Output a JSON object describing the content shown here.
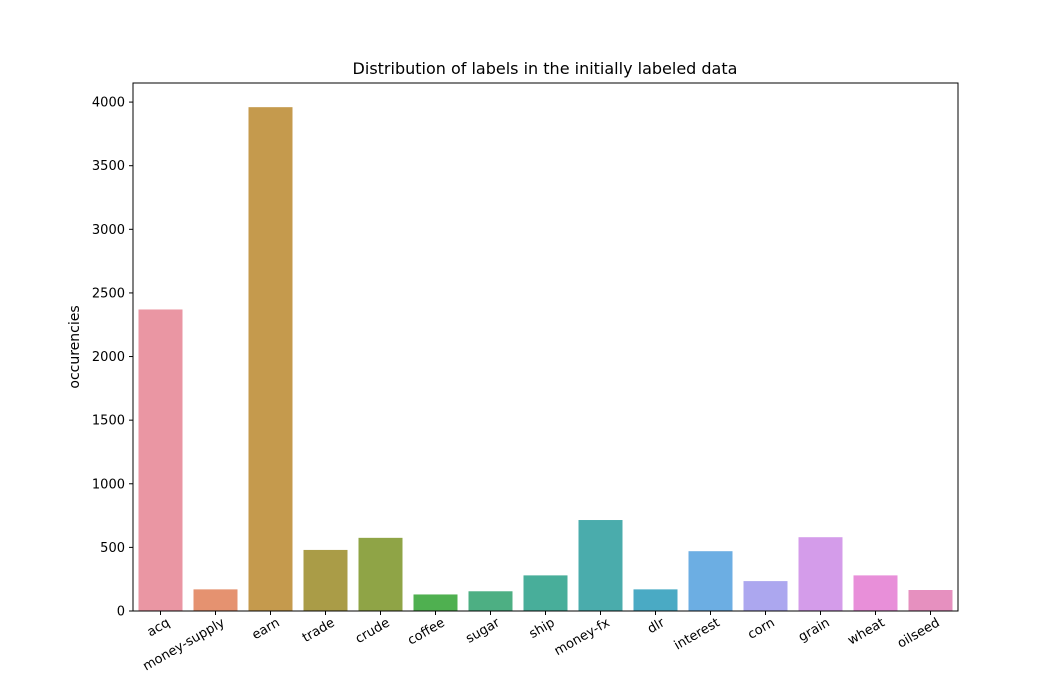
{
  "chart_data": {
    "type": "bar",
    "title": "Distribution of labels in the initially labeled data",
    "xlabel": "",
    "ylabel": "occurencies",
    "ylim": [
      0,
      4150
    ],
    "yticks": [
      0,
      500,
      1000,
      1500,
      2000,
      2500,
      3000,
      3500,
      4000
    ],
    "grid": false,
    "legend": "none",
    "categories": [
      "acq",
      "money-supply",
      "earn",
      "trade",
      "crude",
      "coffee",
      "sugar",
      "ship",
      "money-fx",
      "dlr",
      "interest",
      "corn",
      "grain",
      "wheat",
      "oilseed"
    ],
    "values": [
      2370,
      170,
      3960,
      480,
      575,
      130,
      155,
      280,
      715,
      170,
      470,
      235,
      580,
      280,
      165
    ],
    "colors": [
      "#ea96a3",
      "#e59270",
      "#c59a4d",
      "#aa9c47",
      "#8fa446",
      "#4fb050",
      "#4daf83",
      "#48ae9a",
      "#4aacac",
      "#4aaac4",
      "#6caee3",
      "#aca7ef",
      "#d49cea",
      "#e88fd9",
      "#e690bf"
    ]
  }
}
